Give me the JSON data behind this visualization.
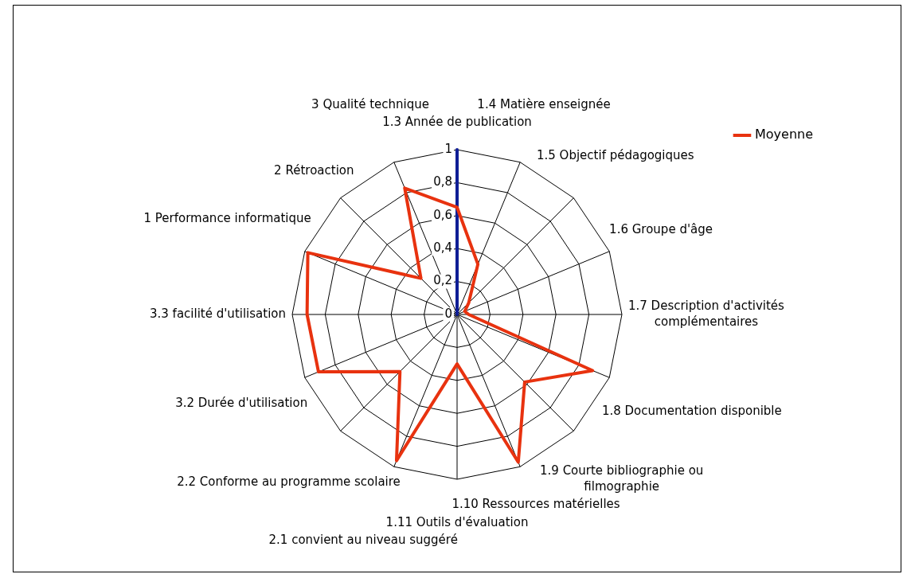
{
  "chart_data": {
    "type": "radar",
    "categories": [
      "1.3 Année de publication",
      "1.4 Matière enseignée",
      "1.5 Objectif pédagogiques",
      "1.6 Groupe d'âge",
      "1.7 Description d'activités complémentaires",
      "1.8 Documentation disponible",
      "1.9 Courte bibliographie ou filmographie",
      "1.10 Ressources matérielles",
      "1.11 Outils d'évaluation",
      "2.1 convient au niveau suggéré",
      "2.2 Conforme au programme scolaire",
      "3.2 Durée d'utilisation",
      "3.3 facilité d'utilisation",
      "1 Performance informatique",
      "2 Rétroaction",
      "3 Qualité technique"
    ],
    "series": [
      {
        "name": "Moyenne",
        "color": "#e8320f",
        "values": [
          0.65,
          0.33,
          0.1,
          0.05,
          0.07,
          0.89,
          0.58,
          0.97,
          0.3,
          0.96,
          0.49,
          0.91,
          0.91,
          0.98,
          0.31,
          0.83
        ]
      },
      {
        "color": "#0f1e96",
        "values": [
          1,
          0,
          0,
          0,
          0,
          0,
          0,
          0,
          0,
          0,
          0,
          0,
          0,
          0,
          0,
          0
        ]
      }
    ],
    "ylim": [
      0,
      1
    ],
    "yticks": [
      0,
      {
        "value": 0.2,
        "label": "0,2"
      },
      {
        "value": 0.4,
        "label": "0,4"
      },
      {
        "value": 0.6,
        "label": "0,6"
      },
      {
        "value": 0.8,
        "label": "0,8"
      },
      1
    ],
    "grid": true,
    "legend": "top right",
    "marker": "none",
    "line_style": "solid"
  }
}
